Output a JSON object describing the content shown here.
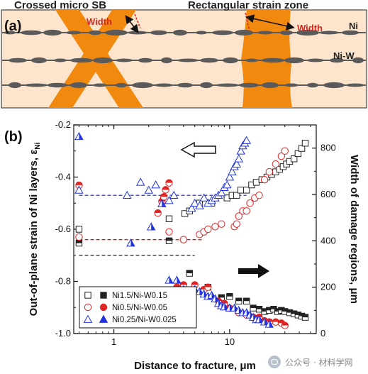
{
  "panel_a": {
    "label": "(a)",
    "title_left": "Crossed micro SB",
    "title_right": "Rectangular strain zone",
    "width_label": "Width",
    "layer_ni": "Ni",
    "layer_niw": "Ni-W",
    "colors": {
      "background": "#fce5cc",
      "band": "#f0890e",
      "layer": "#5a5a5a",
      "width_text": "#d7261e"
    }
  },
  "chart_data": {
    "type": "scatter",
    "panel_label": "(b)",
    "xlabel": "Distance to fracture, μm",
    "ylabel": "Out-of-plane strain of Ni layers, ε",
    "ylabel_subscript": "Ni",
    "y2label": "Width of damage regions, μm",
    "xscale": "log",
    "xlim": [
      0.45,
      56
    ],
    "ylim": [
      -1.0,
      -0.2
    ],
    "y2lim": [
      0,
      900
    ],
    "xticks": [
      "1",
      "10"
    ],
    "yticks": [
      "-0.2",
      "-0.4",
      "-0.6",
      "-0.8",
      "-1.0"
    ],
    "y2ticks": [
      "0",
      "200",
      "400",
      "600",
      "800"
    ],
    "legend_position": "bottom-left",
    "arrows": [
      {
        "direction": "left",
        "style": "hollow",
        "points_to_axis": "left"
      },
      {
        "direction": "right",
        "style": "solid",
        "points_to_axis": "right"
      }
    ],
    "series": [
      {
        "name": "Ni1.5/Ni-W0.15",
        "axis": "left",
        "marker": "hollow-square",
        "color": "#222222",
        "x": [
          0.5,
          3.0,
          4.1,
          4.5,
          5.5,
          7.0,
          9.5,
          10.5,
          11.5,
          12.5,
          14,
          15.5,
          17,
          19,
          21,
          23,
          25,
          27,
          29,
          31,
          33,
          36,
          39,
          42,
          45
        ],
        "y": [
          -0.6,
          -0.56,
          -0.54,
          -0.53,
          -0.5,
          -0.5,
          -0.48,
          -0.47,
          -0.47,
          -0.45,
          -0.45,
          -0.43,
          -0.42,
          -0.41,
          -0.4,
          -0.39,
          -0.38,
          -0.37,
          -0.36,
          -0.35,
          -0.34,
          -0.33,
          -0.31,
          -0.29,
          -0.27
        ]
      },
      {
        "name": "Ni1.5/Ni-W0.15",
        "axis": "right",
        "marker": "half-square",
        "color": "#222222",
        "x": [
          0.5,
          3.0,
          4.5,
          6.5,
          8.5,
          10,
          12,
          14,
          16,
          18,
          20,
          22,
          24,
          26,
          28,
          30,
          33,
          36,
          39,
          42,
          45
        ],
        "y": [
          390,
          400,
          260,
          200,
          155,
          160,
          140,
          140,
          110,
          105,
          95,
          100,
          105,
          95,
          100,
          95,
          90,
          85,
          80,
          75,
          70
        ]
      },
      {
        "name": "Ni0.5/Ni-W0.05",
        "axis": "left",
        "marker": "hollow-circle",
        "color": "#e02424",
        "x": [
          0.5,
          3.0,
          4.0,
          5.5,
          6.0,
          6.5,
          7.5,
          8.5,
          11,
          11.5,
          12,
          13,
          14,
          15,
          16.5,
          18,
          20,
          22,
          25,
          28,
          30
        ],
        "y": [
          -0.63,
          -0.61,
          -0.64,
          -0.62,
          -0.61,
          -0.6,
          -0.59,
          -0.58,
          -0.59,
          -0.58,
          -0.55,
          -0.53,
          -0.53,
          -0.5,
          -0.48,
          -0.47,
          -0.41,
          -0.38,
          -0.35,
          -0.32,
          -0.3
        ]
      },
      {
        "name": "Ni0.5/Ni-W0.05",
        "axis": "right",
        "marker": "half-circle",
        "color": "#e02424",
        "x": [
          0.5,
          2.4,
          2.6,
          2.7,
          2.8,
          3.0,
          3.5,
          4.0,
          5.0,
          6.0,
          6.5,
          8.0,
          9.0,
          10,
          12,
          14,
          16,
          18,
          20,
          22,
          25,
          28,
          30
        ],
        "y": [
          640,
          520,
          570,
          590,
          620,
          650,
          200,
          210,
          210,
          190,
          200,
          140,
          130,
          110,
          90,
          80,
          70,
          70,
          55,
          50,
          50,
          45,
          35
        ]
      },
      {
        "name": "Ni0.25/Ni-W0.025",
        "axis": "left",
        "marker": "hollow-triangle",
        "color": "#2233dd",
        "x": [
          0.5,
          1.3,
          1.7,
          2.0,
          2.3,
          3.0,
          3.3,
          4.7,
          5.0,
          5.5,
          6.0,
          6.5,
          7.0,
          7.5,
          8.0,
          8.5,
          9.0,
          9.5,
          10,
          10.5,
          11,
          11.5,
          12,
          12.5,
          13,
          13.5,
          14
        ],
        "y": [
          -0.45,
          -0.47,
          -0.42,
          -0.45,
          -0.43,
          -0.49,
          -0.47,
          -0.52,
          -0.5,
          -0.51,
          -0.48,
          -0.5,
          -0.49,
          -0.48,
          -0.47,
          -0.46,
          -0.44,
          -0.43,
          -0.4,
          -0.38,
          -0.36,
          -0.35,
          -0.33,
          -0.3,
          -0.28,
          -0.27,
          -0.26
        ]
      },
      {
        "name": "Ni0.25/Ni-W0.025",
        "axis": "right",
        "marker": "half-triangle",
        "color": "#2233dd",
        "x": [
          0.5,
          1.4,
          2.1,
          2.6,
          3.0,
          3.5,
          4.0,
          5.0,
          5.5,
          6.0,
          6.5,
          7.0,
          7.5,
          8.0,
          8.5,
          9.0,
          10,
          11,
          12,
          13,
          14,
          15,
          16,
          17,
          18,
          20,
          22
        ],
        "y": [
          850,
          390,
          460,
          560,
          230,
          230,
          190,
          190,
          180,
          170,
          160,
          165,
          150,
          130,
          120,
          115,
          110,
          110,
          100,
          90,
          90,
          80,
          70,
          60,
          60,
          50,
          40
        ]
      }
    ],
    "reference_lines": [
      {
        "axis": "left",
        "y": -0.47,
        "x_range": [
          0.5,
          14
        ],
        "color": "#2233dd",
        "style": "dashed"
      },
      {
        "axis": "left",
        "y": -0.64,
        "x_range": [
          0.5,
          6
        ],
        "color": "#e02424",
        "style": "dashed"
      },
      {
        "axis": "left",
        "y": -0.7,
        "x_range": [
          0.5,
          5
        ],
        "color": "#222222",
        "style": "dashed"
      }
    ]
  },
  "watermark": "公众号 · 材料学网"
}
